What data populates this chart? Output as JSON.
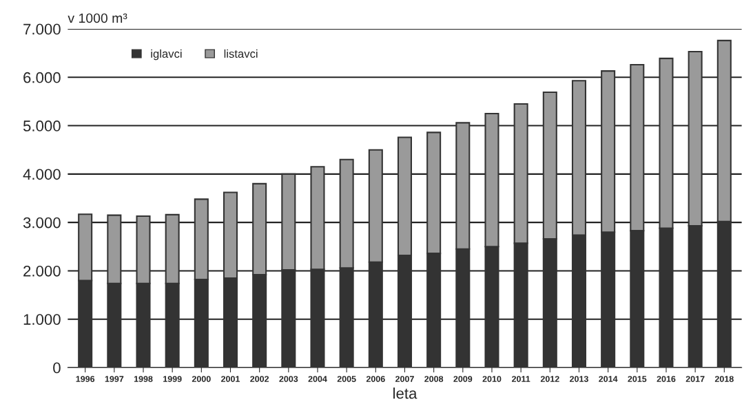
{
  "chart_data": {
    "type": "bar",
    "stacked": true,
    "ylabel": "v 1000 m³",
    "xlabel": "leta",
    "categories": [
      "1996",
      "1997",
      "1998",
      "1999",
      "2000",
      "2001",
      "2002",
      "2003",
      "2004",
      "2005",
      "2006",
      "2007",
      "2008",
      "2009",
      "2010",
      "2011",
      "2012",
      "2013",
      "2014",
      "2015",
      "2016",
      "2017",
      "2018"
    ],
    "series": [
      {
        "name": "iglavci",
        "color": "#333333",
        "values": [
          1800,
          1740,
          1740,
          1740,
          1820,
          1850,
          1920,
          2020,
          2030,
          2060,
          2180,
          2320,
          2360,
          2450,
          2500,
          2570,
          2660,
          2740,
          2800,
          2830,
          2880,
          2930,
          3020
        ]
      },
      {
        "name": "listavci",
        "color": "#9a9a9a",
        "values": [
          1370,
          1410,
          1390,
          1420,
          1660,
          1770,
          1880,
          1980,
          2120,
          2240,
          2320,
          2440,
          2500,
          2610,
          2750,
          2880,
          3030,
          3190,
          3330,
          3430,
          3510,
          3600,
          3740
        ]
      }
    ],
    "ylim": [
      0,
      7000
    ],
    "yticks": [
      {
        "value": 0,
        "label": "0"
      },
      {
        "value": 1000,
        "label": "1.000"
      },
      {
        "value": 2000,
        "label": "2.000"
      },
      {
        "value": 3000,
        "label": "3.000"
      },
      {
        "value": 4000,
        "label": "4.000"
      },
      {
        "value": 5000,
        "label": "5.000"
      },
      {
        "value": 6000,
        "label": "6.000"
      },
      {
        "value": 7000,
        "label": "7.000"
      }
    ],
    "grid": "y",
    "legend": "top left"
  }
}
